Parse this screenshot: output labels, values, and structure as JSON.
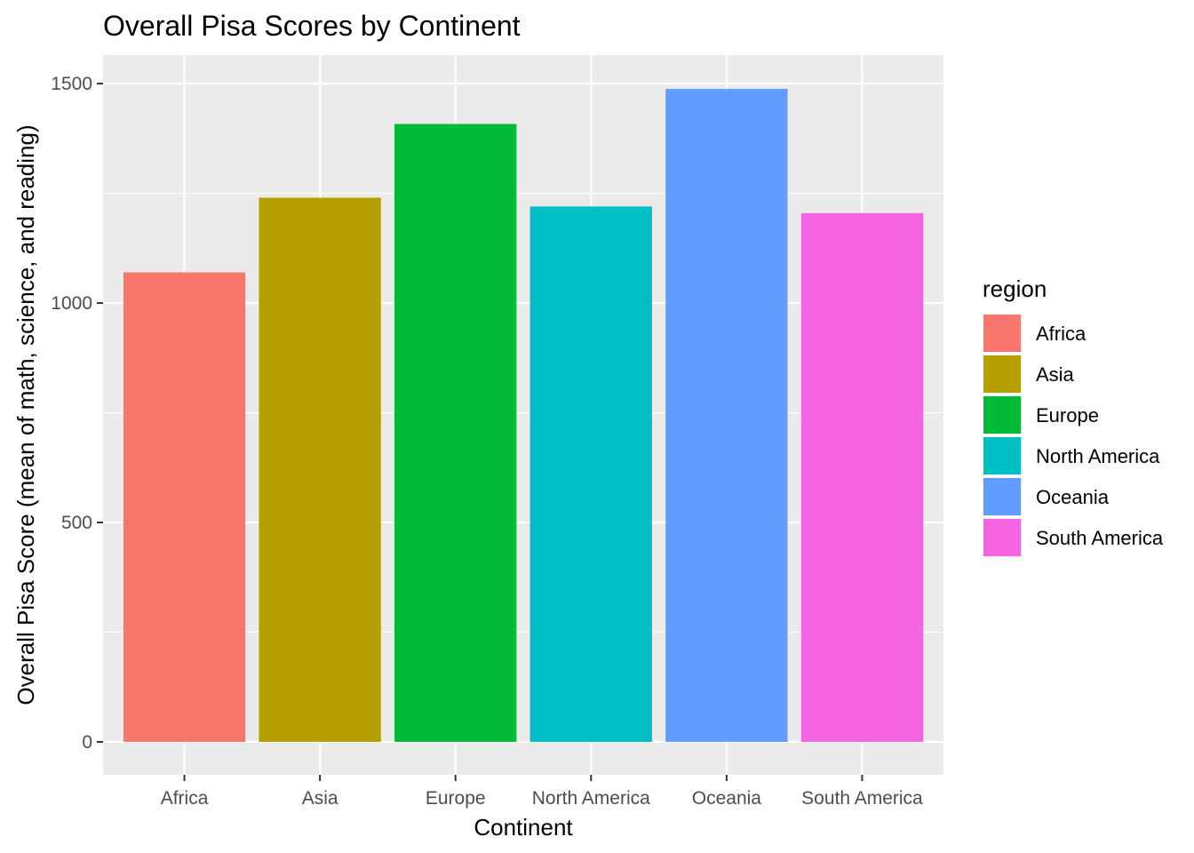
{
  "chart_data": {
    "type": "bar",
    "title": "Overall Pisa Scores by Continent",
    "xlabel": "Continent",
    "ylabel": "Overall Pisa Score (mean of math, science, and reading)",
    "categories": [
      "Africa",
      "Asia",
      "Europe",
      "North America",
      "Oceania",
      "South America"
    ],
    "values": [
      1070,
      1240,
      1408,
      1220,
      1488,
      1205
    ],
    "colors": [
      "#F8766D",
      "#B79F00",
      "#00BA38",
      "#00BFC4",
      "#619CFF",
      "#F564E3"
    ],
    "ylim": [
      -75,
      1565
    ],
    "yticks": [
      0,
      500,
      1000,
      1500
    ],
    "ytick_labels": [
      "0",
      "500",
      "1000",
      "1500"
    ],
    "grid": true,
    "panel_background": "#EBEBEB",
    "legend": {
      "title": "region",
      "placement": "right",
      "entries": [
        "Africa",
        "Asia",
        "Europe",
        "North America",
        "Oceania",
        "South America"
      ]
    }
  }
}
